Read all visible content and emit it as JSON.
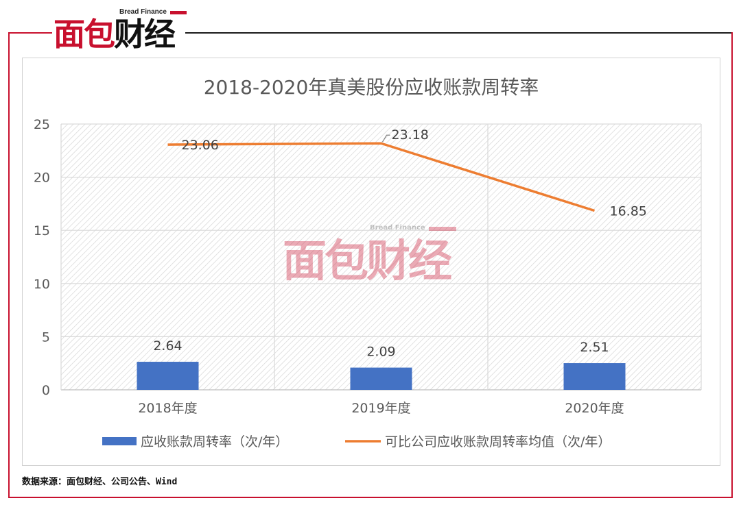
{
  "logo": {
    "en": "Bread Finance",
    "cn_red": "面包",
    "cn_black": "财经"
  },
  "watermark": {
    "en": "Bread Finance",
    "cn": "面包财经"
  },
  "source": "数据来源：面包财经、公司公告、Wind",
  "colors": {
    "brand_red": "#c8102e",
    "bar_blue": "#4472c4",
    "line_orange": "#ed7d31"
  },
  "chart_data": {
    "type": "bar",
    "title": "2018-2020年真美股份应收账款周转率",
    "categories": [
      "2018年度",
      "2019年度",
      "2020年度"
    ],
    "ylim": [
      0,
      25
    ],
    "yticks": [
      0,
      5,
      10,
      15,
      20,
      25
    ],
    "grid": true,
    "legend_position": "bottom",
    "series": [
      {
        "name": "应收账款周转率（次/年）",
        "type": "bar",
        "values": [
          2.64,
          2.09,
          2.51
        ],
        "labels": [
          "2.64",
          "2.09",
          "2.51"
        ]
      },
      {
        "name": "可比公司应收账款周转率均值（次/年）",
        "type": "line",
        "values": [
          23.06,
          23.18,
          16.85
        ],
        "labels": [
          "23.06",
          "23.18",
          "16.85"
        ]
      }
    ]
  }
}
